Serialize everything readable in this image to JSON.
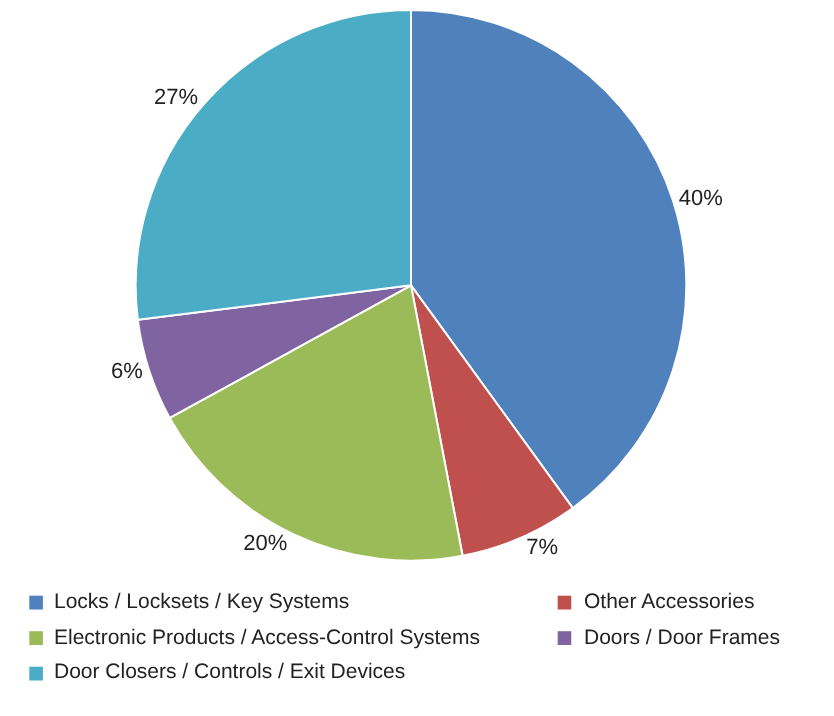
{
  "chart_data": {
    "type": "pie",
    "categories": [
      "Locks / Locksets / Key Systems",
      "Other Accessories",
      "Electronic Products / Access-Control Systems",
      "Doors / Door Frames",
      "Door Closers / Controls / Exit Devices"
    ],
    "values": [
      40,
      7,
      20,
      6,
      27
    ],
    "colors": [
      "#4f81bd",
      "#c0504d",
      "#9bbb59",
      "#8064a2",
      "#4bacc6"
    ],
    "value_labels": [
      "40%",
      "7%",
      "20%",
      "6%",
      "27%"
    ],
    "legend": "bottom"
  }
}
